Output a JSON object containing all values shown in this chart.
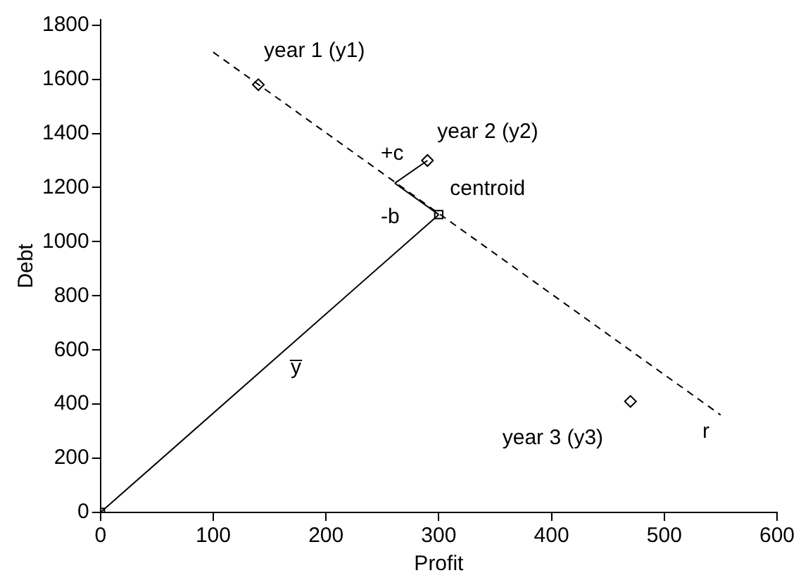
{
  "chart_data": {
    "type": "scatter",
    "xlabel": "Profit",
    "ylabel": "Debt",
    "xlim": [
      0,
      600
    ],
    "xticks": [
      0,
      100,
      200,
      300,
      400,
      500,
      600
    ],
    "ylim": [
      0,
      1820
    ],
    "yticks": [
      0,
      200,
      400,
      600,
      800,
      1000,
      1200,
      1400,
      1600,
      1800
    ],
    "grid": false,
    "legend": false,
    "series": [
      {
        "type": "line",
        "line_style": "dashed",
        "marker": "none",
        "color": "#000000",
        "x": [
          100,
          550
        ],
        "values": [
          1700,
          360
        ]
      },
      {
        "type": "line",
        "line_style": "solid",
        "marker": "none",
        "color": "#000000",
        "x": [
          0,
          300
        ],
        "values": [
          0,
          1100
        ]
      },
      {
        "type": "line",
        "line_style": "solid",
        "marker": "none",
        "color": "#000000",
        "x": [
          300,
          261
        ],
        "values": [
          1100,
          1216
        ]
      },
      {
        "type": "line",
        "line_style": "solid",
        "marker": "none",
        "color": "#000000",
        "x": [
          261,
          290
        ],
        "values": [
          1216,
          1300
        ]
      },
      {
        "marker": "diamond",
        "color": "#000000",
        "x": [
          140,
          290,
          470
        ],
        "values": [
          1580,
          1300,
          410
        ]
      },
      {
        "marker": "square",
        "color": "#000000",
        "x": [
          0,
          300
        ],
        "values": [
          0,
          1100
        ]
      }
    ],
    "annotations": [
      {
        "text": "year 1 (y1)",
        "x": 140,
        "y": 1580
      },
      {
        "text": "year 2 (y2)",
        "x": 290,
        "y": 1300
      },
      {
        "text": "centroid",
        "x": 300,
        "y": 1100
      },
      {
        "text": "year 3 (y3)",
        "x": 470,
        "y": 410
      },
      {
        "text": "r",
        "x": 550,
        "y": 360
      },
      {
        "text": "+c",
        "x": 261,
        "y": 1216
      },
      {
        "text": "-b",
        "x": 261,
        "y": 1216
      },
      {
        "text": "y̅",
        "x": 150,
        "y": 550
      }
    ]
  }
}
